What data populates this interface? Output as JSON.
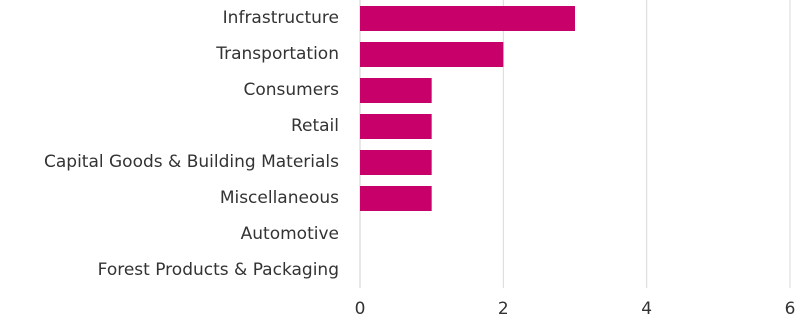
{
  "chart_data": {
    "type": "bar",
    "orientation": "horizontal",
    "categories": [
      "Infrastructure",
      "Transportation",
      "Consumers",
      "Retail",
      "Capital Goods & Building Materials",
      "Miscellaneous",
      "Automotive",
      "Forest Products & Packaging"
    ],
    "values": [
      3,
      2,
      1,
      1,
      1,
      1,
      0,
      0
    ],
    "xticks": [
      0,
      2,
      4,
      6
    ],
    "xlim": [
      0,
      6
    ],
    "title": "",
    "xlabel": "",
    "ylabel": "",
    "grid": true,
    "colors": {
      "bar": "#c8006a",
      "grid": "#d9d9d9",
      "text": "#333333"
    }
  }
}
